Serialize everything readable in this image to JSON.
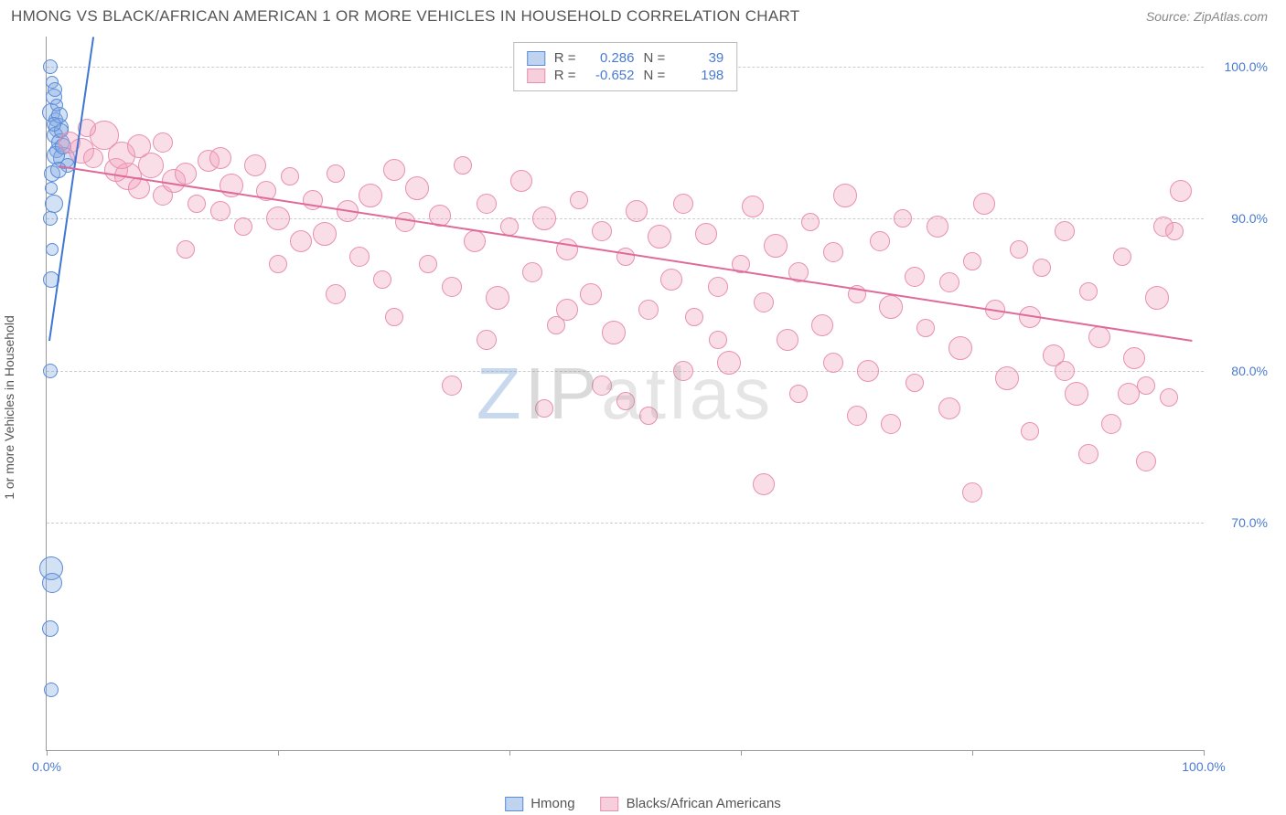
{
  "title": "HMONG VS BLACK/AFRICAN AMERICAN 1 OR MORE VEHICLES IN HOUSEHOLD CORRELATION CHART",
  "source": "Source: ZipAtlas.com",
  "ylabel": "1 or more Vehicles in Household",
  "watermark": {
    "z": "Z",
    "ip": "IP",
    "rest": "atlas"
  },
  "chart": {
    "type": "scatter",
    "xlim": [
      0,
      100
    ],
    "ylim": [
      55,
      102
    ],
    "yticks": [
      70,
      80,
      90,
      100
    ],
    "ytick_labels": [
      "70.0%",
      "80.0%",
      "90.0%",
      "100.0%"
    ],
    "xticks": [
      0,
      20,
      40,
      60,
      80,
      100
    ],
    "xtick_labels_shown": {
      "0": "0.0%",
      "100": "100.0%"
    },
    "grid_color": "#cccccc",
    "background": "#ffffff",
    "series": [
      {
        "name": "Hmong",
        "fill": "rgba(130,170,225,0.35)",
        "stroke": "#5a8bd8",
        "R": "0.286",
        "N": "39",
        "trend": {
          "x1": 0.2,
          "y1": 82,
          "x2": 4,
          "y2": 102,
          "color": "#3f77d4"
        },
        "points": [
          {
            "x": 0.3,
            "y": 100,
            "r": 8
          },
          {
            "x": 0.5,
            "y": 99,
            "r": 7
          },
          {
            "x": 0.6,
            "y": 98,
            "r": 9
          },
          {
            "x": 0.4,
            "y": 97,
            "r": 10
          },
          {
            "x": 0.8,
            "y": 96.5,
            "r": 8
          },
          {
            "x": 1.0,
            "y": 96,
            "r": 11
          },
          {
            "x": 0.7,
            "y": 95.5,
            "r": 9
          },
          {
            "x": 1.2,
            "y": 95,
            "r": 10
          },
          {
            "x": 0.9,
            "y": 94.5,
            "r": 8
          },
          {
            "x": 1.5,
            "y": 94,
            "r": 12
          },
          {
            "x": 0.5,
            "y": 93,
            "r": 9
          },
          {
            "x": 1.8,
            "y": 93.5,
            "r": 8
          },
          {
            "x": 0.4,
            "y": 92,
            "r": 7
          },
          {
            "x": 0.6,
            "y": 91,
            "r": 10
          },
          {
            "x": 0.3,
            "y": 90,
            "r": 8
          },
          {
            "x": 0.5,
            "y": 88,
            "r": 7
          },
          {
            "x": 0.4,
            "y": 86,
            "r": 9
          },
          {
            "x": 0.3,
            "y": 80,
            "r": 8
          },
          {
            "x": 0.4,
            "y": 67,
            "r": 13
          },
          {
            "x": 0.5,
            "y": 66,
            "r": 11
          },
          {
            "x": 0.3,
            "y": 63,
            "r": 9
          },
          {
            "x": 0.4,
            "y": 59,
            "r": 8
          },
          {
            "x": 1.1,
            "y": 96.8,
            "r": 9
          },
          {
            "x": 1.3,
            "y": 95.8,
            "r": 8
          },
          {
            "x": 0.8,
            "y": 94.2,
            "r": 10
          },
          {
            "x": 1.0,
            "y": 93.2,
            "r": 9
          },
          {
            "x": 0.6,
            "y": 96.2,
            "r": 8
          },
          {
            "x": 0.9,
            "y": 97.5,
            "r": 7
          },
          {
            "x": 1.4,
            "y": 94.8,
            "r": 9
          },
          {
            "x": 0.7,
            "y": 98.5,
            "r": 8
          }
        ]
      },
      {
        "name": "Blacks/African Americans",
        "fill": "rgba(240,160,185,0.35)",
        "stroke": "#e88fb0",
        "R": "-0.652",
        "N": "198",
        "trend": {
          "x1": 1,
          "y1": 93.5,
          "x2": 99,
          "y2": 82,
          "color": "#e06a97"
        },
        "points": [
          {
            "x": 2,
            "y": 95,
            "r": 12
          },
          {
            "x": 3,
            "y": 94.5,
            "r": 14
          },
          {
            "x": 4,
            "y": 94,
            "r": 11
          },
          {
            "x": 5,
            "y": 95.5,
            "r": 16
          },
          {
            "x": 6,
            "y": 93.2,
            "r": 13
          },
          {
            "x": 7,
            "y": 92.8,
            "r": 15
          },
          {
            "x": 8,
            "y": 92,
            "r": 12
          },
          {
            "x": 3.5,
            "y": 96,
            "r": 10
          },
          {
            "x": 9,
            "y": 93.5,
            "r": 14
          },
          {
            "x": 10,
            "y": 91.5,
            "r": 11
          },
          {
            "x": 11,
            "y": 92.5,
            "r": 13
          },
          {
            "x": 12,
            "y": 93,
            "r": 12
          },
          {
            "x": 6.5,
            "y": 94.2,
            "r": 15
          },
          {
            "x": 13,
            "y": 91,
            "r": 10
          },
          {
            "x": 14,
            "y": 93.8,
            "r": 12
          },
          {
            "x": 15,
            "y": 90.5,
            "r": 11
          },
          {
            "x": 16,
            "y": 92.2,
            "r": 13
          },
          {
            "x": 17,
            "y": 89.5,
            "r": 10
          },
          {
            "x": 18,
            "y": 93.5,
            "r": 12
          },
          {
            "x": 19,
            "y": 91.8,
            "r": 11
          },
          {
            "x": 20,
            "y": 90,
            "r": 13
          },
          {
            "x": 21,
            "y": 92.8,
            "r": 10
          },
          {
            "x": 22,
            "y": 88.5,
            "r": 12
          },
          {
            "x": 23,
            "y": 91.2,
            "r": 11
          },
          {
            "x": 24,
            "y": 89,
            "r": 13
          },
          {
            "x": 25,
            "y": 93,
            "r": 10
          },
          {
            "x": 26,
            "y": 90.5,
            "r": 12
          },
          {
            "x": 27,
            "y": 87.5,
            "r": 11
          },
          {
            "x": 28,
            "y": 91.5,
            "r": 13
          },
          {
            "x": 29,
            "y": 86,
            "r": 10
          },
          {
            "x": 30,
            "y": 93.2,
            "r": 12
          },
          {
            "x": 31,
            "y": 89.8,
            "r": 11
          },
          {
            "x": 32,
            "y": 92,
            "r": 13
          },
          {
            "x": 33,
            "y": 87,
            "r": 10
          },
          {
            "x": 34,
            "y": 90.2,
            "r": 12
          },
          {
            "x": 35,
            "y": 85.5,
            "r": 11
          },
          {
            "x": 36,
            "y": 93.5,
            "r": 10
          },
          {
            "x": 37,
            "y": 88.5,
            "r": 12
          },
          {
            "x": 38,
            "y": 91,
            "r": 11
          },
          {
            "x": 39,
            "y": 84.8,
            "r": 13
          },
          {
            "x": 40,
            "y": 89.5,
            "r": 10
          },
          {
            "x": 41,
            "y": 92.5,
            "r": 12
          },
          {
            "x": 42,
            "y": 86.5,
            "r": 11
          },
          {
            "x": 43,
            "y": 90,
            "r": 13
          },
          {
            "x": 44,
            "y": 83,
            "r": 10
          },
          {
            "x": 45,
            "y": 88,
            "r": 12
          },
          {
            "x": 35,
            "y": 79,
            "r": 11
          },
          {
            "x": 46,
            "y": 91.2,
            "r": 10
          },
          {
            "x": 47,
            "y": 85,
            "r": 12
          },
          {
            "x": 48,
            "y": 89.2,
            "r": 11
          },
          {
            "x": 49,
            "y": 82.5,
            "r": 13
          },
          {
            "x": 50,
            "y": 87.5,
            "r": 10
          },
          {
            "x": 51,
            "y": 90.5,
            "r": 12
          },
          {
            "x": 52,
            "y": 84,
            "r": 11
          },
          {
            "x": 53,
            "y": 88.8,
            "r": 13
          },
          {
            "x": 43,
            "y": 77.5,
            "r": 10
          },
          {
            "x": 54,
            "y": 86,
            "r": 12
          },
          {
            "x": 55,
            "y": 91,
            "r": 11
          },
          {
            "x": 56,
            "y": 83.5,
            "r": 10
          },
          {
            "x": 57,
            "y": 89,
            "r": 12
          },
          {
            "x": 58,
            "y": 85.5,
            "r": 11
          },
          {
            "x": 59,
            "y": 80.5,
            "r": 13
          },
          {
            "x": 60,
            "y": 87,
            "r": 10
          },
          {
            "x": 61,
            "y": 90.8,
            "r": 12
          },
          {
            "x": 62,
            "y": 84.5,
            "r": 11
          },
          {
            "x": 63,
            "y": 88.2,
            "r": 13
          },
          {
            "x": 50,
            "y": 78,
            "r": 10
          },
          {
            "x": 64,
            "y": 82,
            "r": 12
          },
          {
            "x": 65,
            "y": 86.5,
            "r": 11
          },
          {
            "x": 66,
            "y": 89.8,
            "r": 10
          },
          {
            "x": 67,
            "y": 83,
            "r": 12
          },
          {
            "x": 68,
            "y": 87.8,
            "r": 11
          },
          {
            "x": 69,
            "y": 91.5,
            "r": 13
          },
          {
            "x": 70,
            "y": 85,
            "r": 10
          },
          {
            "x": 71,
            "y": 80,
            "r": 12
          },
          {
            "x": 72,
            "y": 88.5,
            "r": 11
          },
          {
            "x": 73,
            "y": 84.2,
            "r": 13
          },
          {
            "x": 74,
            "y": 90,
            "r": 10
          },
          {
            "x": 62,
            "y": 72.5,
            "r": 12
          },
          {
            "x": 75,
            "y": 86.2,
            "r": 11
          },
          {
            "x": 76,
            "y": 82.8,
            "r": 10
          },
          {
            "x": 77,
            "y": 89.5,
            "r": 12
          },
          {
            "x": 78,
            "y": 85.8,
            "r": 11
          },
          {
            "x": 79,
            "y": 81.5,
            "r": 13
          },
          {
            "x": 80,
            "y": 87.2,
            "r": 10
          },
          {
            "x": 81,
            "y": 91,
            "r": 12
          },
          {
            "x": 82,
            "y": 84,
            "r": 11
          },
          {
            "x": 83,
            "y": 79.5,
            "r": 13
          },
          {
            "x": 84,
            "y": 88,
            "r": 10
          },
          {
            "x": 85,
            "y": 83.5,
            "r": 12
          },
          {
            "x": 80,
            "y": 72,
            "r": 11
          },
          {
            "x": 86,
            "y": 86.8,
            "r": 10
          },
          {
            "x": 87,
            "y": 81,
            "r": 12
          },
          {
            "x": 88,
            "y": 89.2,
            "r": 11
          },
          {
            "x": 89,
            "y": 78.5,
            "r": 13
          },
          {
            "x": 90,
            "y": 85.2,
            "r": 10
          },
          {
            "x": 91,
            "y": 82.2,
            "r": 12
          },
          {
            "x": 92,
            "y": 76.5,
            "r": 11
          },
          {
            "x": 93,
            "y": 87.5,
            "r": 10
          },
          {
            "x": 94,
            "y": 80.8,
            "r": 12
          },
          {
            "x": 95,
            "y": 74,
            "r": 11
          },
          {
            "x": 96,
            "y": 84.8,
            "r": 13
          },
          {
            "x": 97,
            "y": 78.2,
            "r": 10
          },
          {
            "x": 98,
            "y": 91.8,
            "r": 12
          },
          {
            "x": 96.5,
            "y": 89.5,
            "r": 11
          },
          {
            "x": 97.5,
            "y": 89.2,
            "r": 10
          },
          {
            "x": 90,
            "y": 74.5,
            "r": 11
          },
          {
            "x": 95,
            "y": 79,
            "r": 10
          },
          {
            "x": 93.5,
            "y": 78.5,
            "r": 12
          },
          {
            "x": 55,
            "y": 80,
            "r": 11
          },
          {
            "x": 65,
            "y": 78.5,
            "r": 10
          },
          {
            "x": 70,
            "y": 77,
            "r": 11
          },
          {
            "x": 75,
            "y": 79.2,
            "r": 10
          },
          {
            "x": 45,
            "y": 84,
            "r": 12
          },
          {
            "x": 38,
            "y": 82,
            "r": 11
          },
          {
            "x": 58,
            "y": 82,
            "r": 10
          },
          {
            "x": 68,
            "y": 80.5,
            "r": 11
          },
          {
            "x": 78,
            "y": 77.5,
            "r": 12
          },
          {
            "x": 85,
            "y": 76,
            "r": 10
          },
          {
            "x": 88,
            "y": 80,
            "r": 11
          },
          {
            "x": 30,
            "y": 83.5,
            "r": 10
          },
          {
            "x": 25,
            "y": 85,
            "r": 11
          },
          {
            "x": 20,
            "y": 87,
            "r": 10
          },
          {
            "x": 15,
            "y": 94,
            "r": 12
          },
          {
            "x": 10,
            "y": 95,
            "r": 11
          },
          {
            "x": 8,
            "y": 94.8,
            "r": 13
          },
          {
            "x": 12,
            "y": 88,
            "r": 10
          },
          {
            "x": 48,
            "y": 79,
            "r": 11
          },
          {
            "x": 52,
            "y": 77,
            "r": 10
          },
          {
            "x": 73,
            "y": 76.5,
            "r": 11
          }
        ]
      }
    ]
  },
  "legend_top": {
    "r_label": "R =",
    "n_label": "N ="
  },
  "legend_bottom": [
    {
      "label": "Hmong",
      "fill": "rgba(130,170,225,0.5)",
      "stroke": "#5a8bd8"
    },
    {
      "label": "Blacks/African Americans",
      "fill": "rgba(240,160,185,0.5)",
      "stroke": "#e88fb0"
    }
  ]
}
